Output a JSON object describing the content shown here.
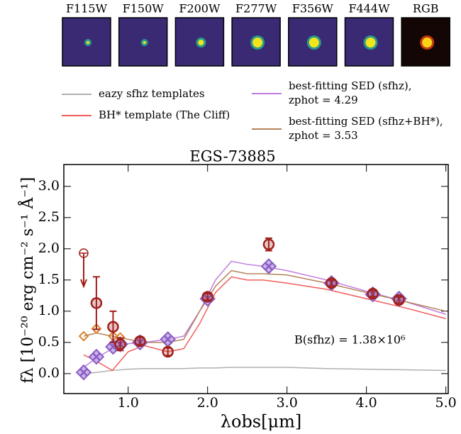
{
  "chart_data": {
    "type": "line",
    "title": "EGS-73885",
    "x_label": "λobs[μm]",
    "y_label": "fλ [10⁻²⁰ erg cm⁻² s⁻¹ Å⁻¹]",
    "annotation": "B(sfhz) = 1.38×10⁶",
    "thumbnails": [
      "F115W",
      "F150W",
      "F200W",
      "F277W",
      "F356W",
      "F444W",
      "RGB"
    ],
    "xlim": [
      0.19,
      5.03
    ],
    "ylim": [
      -0.32,
      3.35
    ],
    "xticks": [
      {
        "value": 1,
        "label": "1.0"
      },
      {
        "value": 2,
        "label": "2.0"
      },
      {
        "value": 3,
        "label": "3.0"
      },
      {
        "value": 4,
        "label": "4.0"
      },
      {
        "value": 5,
        "label": "5.0"
      }
    ],
    "yticks": [
      {
        "value": 0,
        "label": "0.0"
      },
      {
        "value": 0.5,
        "label": "0.5"
      },
      {
        "value": 1,
        "label": "1.0"
      },
      {
        "value": 1.5,
        "label": "1.5"
      },
      {
        "value": 2,
        "label": "2.0"
      },
      {
        "value": 2.5,
        "label": "2.5"
      },
      {
        "value": 3,
        "label": "3.0"
      }
    ],
    "x": [
      0.44,
      0.6,
      0.8,
      1.0,
      1.2,
      1.5,
      1.7,
      1.9,
      2.1,
      2.3,
      2.5,
      2.7,
      3.0,
      3.5,
      4.0,
      4.5,
      5.0
    ],
    "series": [
      {
        "name": "eazy sfhz templates",
        "color": "#b0b0b0",
        "values": [
          0.0,
          0.02,
          0.05,
          0.07,
          0.08,
          0.08,
          0.08,
          0.09,
          0.09,
          0.1,
          0.1,
          0.1,
          0.1,
          0.08,
          0.07,
          0.06,
          0.05
        ]
      },
      {
        "name": "BH* template (The Cliff)",
        "color": "#f25c5c",
        "values": [
          0.3,
          0.2,
          0.05,
          0.35,
          0.45,
          0.35,
          0.4,
          0.8,
          1.3,
          1.55,
          1.5,
          1.5,
          1.45,
          1.35,
          1.2,
          1.05,
          0.88
        ]
      },
      {
        "name": "best-fitting SED (sfhz),",
        "subline": "zphot = 4.29",
        "color": "#c07de0",
        "values": [
          0.1,
          0.25,
          0.4,
          0.48,
          0.5,
          0.55,
          0.6,
          1.0,
          1.5,
          1.8,
          1.75,
          1.72,
          1.65,
          1.5,
          1.32,
          1.15,
          0.95
        ]
      },
      {
        "name": "best-fitting SED (sfhz+BH*),",
        "subline": "zphot = 3.53",
        "color": "#b5835a",
        "values": [
          0.6,
          0.65,
          0.6,
          0.55,
          0.5,
          0.5,
          0.55,
          1.0,
          1.4,
          1.65,
          1.6,
          1.6,
          1.58,
          1.45,
          1.3,
          1.15,
          1.0
        ]
      }
    ],
    "photometry": {
      "color": "#a0201c",
      "x": [
        0.44,
        0.6,
        0.81,
        0.9,
        1.15,
        1.5,
        2.0,
        2.77,
        3.56,
        4.08,
        4.41
      ],
      "values": [
        1.93,
        1.13,
        0.75,
        0.47,
        0.52,
        0.35,
        1.23,
        2.07,
        1.45,
        1.28,
        1.18
      ],
      "errors": [
        null,
        0.42,
        0.25,
        0.1,
        0.06,
        0.06,
        0.05,
        0.1,
        0.05,
        0.05,
        0.05
      ],
      "upper_limit": [
        true,
        false,
        false,
        false,
        false,
        false,
        false,
        false,
        false,
        false,
        false
      ]
    },
    "model_sfhz": {
      "color": "#8a5cc4",
      "x": [
        0.44,
        0.6,
        0.81,
        0.9,
        1.15,
        1.5,
        2.0,
        2.77,
        3.56,
        4.08,
        4.41
      ],
      "values": [
        0.02,
        0.27,
        0.43,
        0.47,
        0.5,
        0.55,
        1.2,
        1.72,
        1.45,
        1.27,
        1.2
      ]
    },
    "model_bh": {
      "color": "#d9822b",
      "x": [
        0.44,
        0.6,
        0.81,
        0.9,
        1.15,
        1.5,
        2.0,
        2.77,
        3.56,
        4.08,
        4.41
      ],
      "values": [
        0.6,
        0.72,
        0.6,
        0.58,
        0.52,
        0.5,
        1.22,
        1.7,
        1.45,
        1.28,
        1.18
      ]
    }
  }
}
